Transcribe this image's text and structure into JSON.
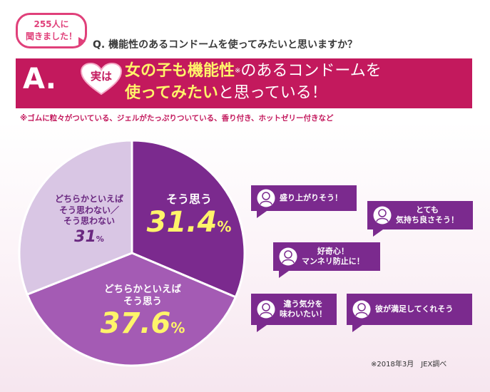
{
  "header": {
    "badge_line1": "255人に",
    "badge_line2": "聞きました！",
    "question": "Q. 機能性のあるコンドームを使ってみたいと思いますか？",
    "answer_mark": "A.",
    "heart_text": "実は",
    "line1_highlight": "女の子も機能性",
    "line1_mark": "※",
    "line1_rest": "のあるコンドームを",
    "line2_highlight": "使ってみたい",
    "line2_rest": "と思っている！",
    "note": "※ゴムに粒々がついている、ジェルがたっぷりついている、香り付き、ホットゼリー付きなど"
  },
  "chart_data": {
    "type": "pie",
    "slices": [
      {
        "label": "そう思う",
        "value": 31.4
      },
      {
        "label": "どちらかといえば そう思う",
        "value": 37.6
      },
      {
        "label": "どちらかといえば そう思わない／ そう思わない",
        "value": 31
      }
    ],
    "colors": [
      "#7b2a8e",
      "#a45bb4",
      "#d9c6e4"
    ]
  },
  "labels": {
    "yes_text": "そう思う",
    "yes_value": "31.4",
    "somewhat_text1": "どちらかといえば",
    "somewhat_text2": "そう思う",
    "somewhat_value": "37.6",
    "no_text1": "どちらかといえば",
    "no_text2": "そう思わない／",
    "no_text3": "そう思わない",
    "no_value": "31",
    "pct_symbol": "%"
  },
  "comments": [
    {
      "line1": "盛り上がりそう！",
      "line2": ""
    },
    {
      "line1": "とても",
      "line2": "気持ち良さそう！"
    },
    {
      "line1": "好奇心！",
      "line2": "マンネリ防止に！"
    },
    {
      "line1": "違う気分を",
      "line2": "味わいたい！"
    },
    {
      "line1": "彼が満足してくれそう",
      "line2": ""
    }
  ],
  "footer": {
    "source": "※2018年3月　JEX調べ"
  },
  "colors": {
    "brand": "#c3195d",
    "accent": "#fff46a",
    "bubble": "#7b2a8e"
  }
}
